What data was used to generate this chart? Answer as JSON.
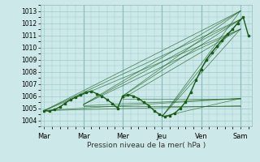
{
  "xlabel": "Pression niveau de la mer( hPa )",
  "bg_color": "#cce8e8",
  "grid_color": "#99cccc",
  "line_color": "#1a5c1a",
  "ylim": [
    1003.5,
    1013.5
  ],
  "yticks": [
    1004,
    1005,
    1006,
    1007,
    1008,
    1009,
    1010,
    1011,
    1012,
    1013
  ],
  "day_labels": [
    "Mar",
    "Mar",
    "Mer",
    "Jeu",
    "Ven",
    "Sam"
  ],
  "day_positions": [
    0,
    1,
    2,
    3,
    4,
    5
  ],
  "xlim": [
    -0.1,
    5.3
  ],
  "forecast_lines": [
    {
      "x": [
        0,
        5
      ],
      "y": [
        1004.8,
        1013.0
      ]
    },
    {
      "x": [
        0,
        5
      ],
      "y": [
        1004.8,
        1012.3
      ]
    },
    {
      "x": [
        0,
        5
      ],
      "y": [
        1004.8,
        1011.5
      ]
    },
    {
      "x": [
        0,
        5
      ],
      "y": [
        1004.8,
        1005.8
      ]
    },
    {
      "x": [
        0,
        5
      ],
      "y": [
        1004.8,
        1005.2
      ]
    },
    {
      "x": [
        1,
        5
      ],
      "y": [
        1005.3,
        1013.0
      ]
    },
    {
      "x": [
        1,
        5
      ],
      "y": [
        1005.3,
        1012.3
      ]
    },
    {
      "x": [
        1,
        5
      ],
      "y": [
        1005.3,
        1011.5
      ]
    },
    {
      "x": [
        1,
        5
      ],
      "y": [
        1005.2,
        1005.8
      ]
    },
    {
      "x": [
        1,
        5
      ],
      "y": [
        1005.2,
        1005.2
      ]
    },
    {
      "x": [
        2,
        5
      ],
      "y": [
        1006.0,
        1013.0
      ]
    },
    {
      "x": [
        2,
        5
      ],
      "y": [
        1006.0,
        1012.3
      ]
    },
    {
      "x": [
        2,
        5
      ],
      "y": [
        1005.8,
        1011.5
      ]
    },
    {
      "x": [
        2,
        5
      ],
      "y": [
        1005.8,
        1005.8
      ]
    },
    {
      "x": [
        3,
        5
      ],
      "y": [
        1004.3,
        1013.0
      ]
    },
    {
      "x": [
        3,
        5
      ],
      "y": [
        1004.3,
        1012.3
      ]
    },
    {
      "x": [
        3,
        5
      ],
      "y": [
        1004.3,
        1011.5
      ]
    },
    {
      "x": [
        3,
        5
      ],
      "y": [
        1004.3,
        1005.8
      ]
    }
  ],
  "main_series_x": [
    0.0,
    0.13,
    0.27,
    0.4,
    0.53,
    0.67,
    0.8,
    0.93,
    1.07,
    1.2,
    1.33,
    1.47,
    1.6,
    1.73,
    1.87,
    2.0,
    2.13,
    2.27,
    2.4,
    2.53,
    2.67,
    2.8,
    2.93,
    3.07,
    3.2,
    3.33,
    3.47,
    3.6,
    3.73,
    3.87,
    4.0,
    4.13,
    4.27,
    4.4,
    4.53,
    4.67,
    4.8,
    4.93,
    5.07,
    5.2
  ],
  "main_series_y": [
    1004.8,
    1004.75,
    1004.9,
    1005.1,
    1005.4,
    1005.7,
    1005.9,
    1006.1,
    1006.3,
    1006.4,
    1006.2,
    1006.0,
    1005.7,
    1005.4,
    1005.0,
    1006.0,
    1006.1,
    1006.0,
    1005.8,
    1005.5,
    1005.2,
    1004.8,
    1004.5,
    1004.3,
    1004.4,
    1004.6,
    1005.0,
    1005.5,
    1006.3,
    1007.3,
    1008.2,
    1009.0,
    1009.6,
    1010.1,
    1010.6,
    1011.1,
    1011.5,
    1012.0,
    1012.5,
    1011.0
  ]
}
